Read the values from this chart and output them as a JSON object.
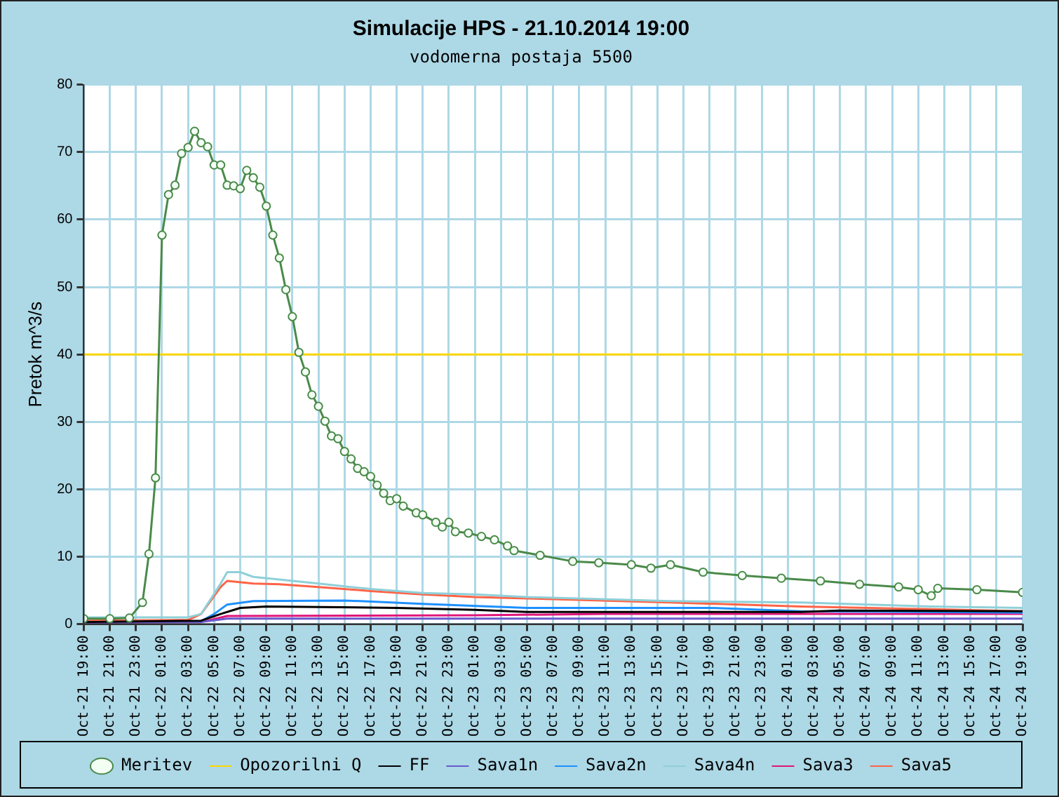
{
  "chart_data": {
    "type": "line",
    "title": "Simulacije HPS - 21.10.2014 19:00",
    "subtitle": "vodomerna postaja 5500",
    "ylabel": "Pretok m^3/s",
    "xlim": [
      "2014-10-21T19:00",
      "2014-10-24T19:00"
    ],
    "xticks": [
      {
        "value": "2014-10-21T19:00",
        "label": "Oct-21 19:00"
      },
      {
        "value": "2014-10-21T21:00",
        "label": "Oct-21 21:00"
      },
      {
        "value": "2014-10-21T23:00",
        "label": "Oct-21 23:00"
      },
      {
        "value": "2014-10-22T01:00",
        "label": "Oct-22 01:00"
      },
      {
        "value": "2014-10-22T03:00",
        "label": "Oct-22 03:00"
      },
      {
        "value": "2014-10-22T05:00",
        "label": "Oct-22 05:00"
      },
      {
        "value": "2014-10-22T07:00",
        "label": "Oct-22 07:00"
      },
      {
        "value": "2014-10-22T09:00",
        "label": "Oct-22 09:00"
      },
      {
        "value": "2014-10-22T11:00",
        "label": "Oct-22 11:00"
      },
      {
        "value": "2014-10-22T13:00",
        "label": "Oct-22 13:00"
      },
      {
        "value": "2014-10-22T15:00",
        "label": "Oct-22 15:00"
      },
      {
        "value": "2014-10-22T17:00",
        "label": "Oct-22 17:00"
      },
      {
        "value": "2014-10-22T19:00",
        "label": "Oct-22 19:00"
      },
      {
        "value": "2014-10-22T21:00",
        "label": "Oct-22 21:00"
      },
      {
        "value": "2014-10-22T23:00",
        "label": "Oct-22 23:00"
      },
      {
        "value": "2014-10-23T01:00",
        "label": "Oct-23 01:00"
      },
      {
        "value": "2014-10-23T03:00",
        "label": "Oct-23 03:00"
      },
      {
        "value": "2014-10-23T05:00",
        "label": "Oct-23 05:00"
      },
      {
        "value": "2014-10-23T07:00",
        "label": "Oct-23 07:00"
      },
      {
        "value": "2014-10-23T09:00",
        "label": "Oct-23 09:00"
      },
      {
        "value": "2014-10-23T11:00",
        "label": "Oct-23 11:00"
      },
      {
        "value": "2014-10-23T13:00",
        "label": "Oct-23 13:00"
      },
      {
        "value": "2014-10-23T15:00",
        "label": "Oct-23 15:00"
      },
      {
        "value": "2014-10-23T17:00",
        "label": "Oct-23 17:00"
      },
      {
        "value": "2014-10-23T19:00",
        "label": "Oct-23 19:00"
      },
      {
        "value": "2014-10-23T21:00",
        "label": "Oct-23 21:00"
      },
      {
        "value": "2014-10-23T23:00",
        "label": "Oct-23 23:00"
      },
      {
        "value": "2014-10-24T01:00",
        "label": "Oct-24 01:00"
      },
      {
        "value": "2014-10-24T03:00",
        "label": "Oct-24 03:00"
      },
      {
        "value": "2014-10-24T05:00",
        "label": "Oct-24 05:00"
      },
      {
        "value": "2014-10-24T07:00",
        "label": "Oct-24 07:00"
      },
      {
        "value": "2014-10-24T09:00",
        "label": "Oct-24 09:00"
      },
      {
        "value": "2014-10-24T11:00",
        "label": "Oct-24 11:00"
      },
      {
        "value": "2014-10-24T13:00",
        "label": "Oct-24 13:00"
      },
      {
        "value": "2014-10-24T15:00",
        "label": "Oct-24 15:00"
      },
      {
        "value": "2014-10-24T17:00",
        "label": "Oct-24 17:00"
      },
      {
        "value": "2014-10-24T19:00",
        "label": "Oct-24 19:00"
      }
    ],
    "ylim": [
      0,
      80
    ],
    "yticks": [
      0,
      10,
      20,
      30,
      40,
      50,
      60,
      70,
      80
    ],
    "grid": true,
    "legend": "bottom",
    "line_style": "solid",
    "series": [
      {
        "name": "Meritev",
        "marker": "circle",
        "color": "#4a8a4a",
        "x": [
          "2014-10-21T19:00",
          "2014-10-21T21:00",
          "2014-10-21T22:30",
          "2014-10-21T23:30",
          "2014-10-22T00:00",
          "2014-10-22T00:30",
          "2014-10-22T01:00",
          "2014-10-22T01:30",
          "2014-10-22T02:00",
          "2014-10-22T02:30",
          "2014-10-22T03:00",
          "2014-10-22T03:30",
          "2014-10-22T04:00",
          "2014-10-22T04:30",
          "2014-10-22T05:00",
          "2014-10-22T05:30",
          "2014-10-22T06:00",
          "2014-10-22T06:30",
          "2014-10-22T07:00",
          "2014-10-22T07:30",
          "2014-10-22T08:00",
          "2014-10-22T08:30",
          "2014-10-22T09:00",
          "2014-10-22T09:30",
          "2014-10-22T10:00",
          "2014-10-22T10:30",
          "2014-10-22T11:00",
          "2014-10-22T11:30",
          "2014-10-22T12:00",
          "2014-10-22T12:30",
          "2014-10-22T13:00",
          "2014-10-22T13:30",
          "2014-10-22T14:00",
          "2014-10-22T14:30",
          "2014-10-22T15:00",
          "2014-10-22T15:30",
          "2014-10-22T16:00",
          "2014-10-22T16:30",
          "2014-10-22T17:00",
          "2014-10-22T17:30",
          "2014-10-22T18:00",
          "2014-10-22T18:30",
          "2014-10-22T19:00",
          "2014-10-22T19:30",
          "2014-10-22T20:30",
          "2014-10-22T21:00",
          "2014-10-22T22:00",
          "2014-10-22T22:30",
          "2014-10-22T23:00",
          "2014-10-22T23:30",
          "2014-10-23T00:30",
          "2014-10-23T01:30",
          "2014-10-23T02:30",
          "2014-10-23T03:30",
          "2014-10-23T04:00",
          "2014-10-23T06:00",
          "2014-10-23T08:30",
          "2014-10-23T10:30",
          "2014-10-23T13:00",
          "2014-10-23T14:30",
          "2014-10-23T16:00",
          "2014-10-23T18:30",
          "2014-10-23T21:30",
          "2014-10-24T00:30",
          "2014-10-24T03:30",
          "2014-10-24T06:30",
          "2014-10-24T09:30",
          "2014-10-24T11:00",
          "2014-10-24T12:00",
          "2014-10-24T12:30",
          "2014-10-24T15:30",
          "2014-10-24T19:00"
        ],
        "values": [
          0.8,
          0.8,
          0.9,
          3.2,
          10.4,
          21.7,
          57.7,
          63.7,
          65.1,
          69.8,
          70.7,
          73.1,
          71.4,
          70.8,
          68.1,
          68.1,
          65.1,
          65,
          64.6,
          67.3,
          66.2,
          64.8,
          62,
          57.7,
          54.3,
          49.6,
          45.6,
          40.3,
          37.4,
          34,
          32.3,
          30.1,
          27.9,
          27.5,
          25.6,
          24.5,
          23.1,
          22.6,
          21.9,
          20.6,
          19.4,
          18.3,
          18.6,
          17.5,
          16.5,
          16.2,
          15.1,
          14.4,
          15.1,
          13.7,
          13.5,
          13,
          12.5,
          11.6,
          10.9,
          10.2,
          9.3,
          9.1,
          8.8,
          8.3,
          8.8,
          7.7,
          7.2,
          6.8,
          6.4,
          5.9,
          5.5,
          5.1,
          4.2,
          5.3,
          5.1,
          4.7
        ]
      },
      {
        "name": "Opozorilni Q",
        "marker": "none",
        "color": "#ffd700",
        "x": [
          "2014-10-21T19:00",
          "2014-10-24T19:00"
        ],
        "values": [
          40,
          40
        ]
      },
      {
        "name": "FF",
        "marker": "none",
        "color": "#000000",
        "x": [
          "2014-10-21T19:00",
          "2014-10-22T04:00",
          "2014-10-22T05:30",
          "2014-10-22T07:00",
          "2014-10-22T09:00",
          "2014-10-22T19:00",
          "2014-10-23T01:00",
          "2014-10-23T05:00",
          "2014-10-24T02:00",
          "2014-10-24T05:00",
          "2014-10-24T19:00"
        ],
        "values": [
          0.3,
          0.5,
          1.5,
          2.4,
          2.6,
          2.4,
          2.1,
          1.8,
          1.8,
          2,
          1.9
        ]
      },
      {
        "name": "Sava1n",
        "marker": "none",
        "color": "#6a5acd",
        "x": [
          "2014-10-21T19:00",
          "2014-10-22T04:00",
          "2014-10-22T06:00",
          "2014-10-24T19:00"
        ],
        "values": [
          0.2,
          0.3,
          0.8,
          0.8
        ]
      },
      {
        "name": "Sava2n",
        "marker": "none",
        "color": "#1e90ff",
        "x": [
          "2014-10-21T19:00",
          "2014-10-22T04:00",
          "2014-10-22T05:00",
          "2014-10-22T06:00",
          "2014-10-22T08:00",
          "2014-10-22T15:00",
          "2014-10-22T21:00",
          "2014-10-23T05:00",
          "2014-10-23T19:00",
          "2014-10-24T02:00",
          "2014-10-24T19:00"
        ],
        "values": [
          0.3,
          0.4,
          1.5,
          2.9,
          3.4,
          3.5,
          3,
          2.4,
          2.4,
          1.9,
          1.7
        ]
      },
      {
        "name": "Sava4n",
        "marker": "none",
        "color": "#8fd0d8",
        "x": [
          "2014-10-21T19:00",
          "2014-10-22T03:00",
          "2014-10-22T04:00",
          "2014-10-22T05:30",
          "2014-10-22T06:00",
          "2014-10-22T07:00",
          "2014-10-22T08:00",
          "2014-10-22T10:00",
          "2014-10-22T13:00",
          "2014-10-22T17:00",
          "2014-10-22T21:00",
          "2014-10-23T01:00",
          "2014-10-23T05:00",
          "2014-10-23T16:00",
          "2014-10-24T02:00",
          "2014-10-24T12:00",
          "2014-10-24T19:00"
        ],
        "values": [
          1,
          1,
          1.5,
          6,
          7.7,
          7.7,
          7,
          6.6,
          6,
          5.2,
          4.6,
          4.4,
          4,
          3.4,
          3.2,
          2.6,
          2.4
        ]
      },
      {
        "name": "Sava3",
        "marker": "none",
        "color": "#e0157a",
        "x": [
          "2014-10-21T19:00",
          "2014-10-22T04:00",
          "2014-10-22T06:00",
          "2014-10-23T01:00",
          "2014-10-23T11:00",
          "2014-10-24T19:00"
        ],
        "values": [
          0.2,
          0.3,
          1.2,
          1.3,
          1.5,
          1.5
        ]
      },
      {
        "name": "Sava5",
        "marker": "none",
        "color": "#ff6347",
        "x": [
          "2014-10-21T19:00",
          "2014-10-22T03:00",
          "2014-10-22T04:00",
          "2014-10-22T05:30",
          "2014-10-22T06:00",
          "2014-10-22T08:00",
          "2014-10-22T10:00",
          "2014-10-22T13:00",
          "2014-10-22T17:00",
          "2014-10-22T21:00",
          "2014-10-23T01:00",
          "2014-10-23T05:00",
          "2014-10-23T16:00",
          "2014-10-24T02:00",
          "2014-10-24T12:00",
          "2014-10-24T19:00"
        ],
        "values": [
          0.5,
          0.6,
          1.5,
          5.5,
          6.4,
          6,
          5.9,
          5.5,
          4.9,
          4.4,
          4,
          3.8,
          3.2,
          2.6,
          2.2,
          1.9
        ]
      }
    ]
  }
}
